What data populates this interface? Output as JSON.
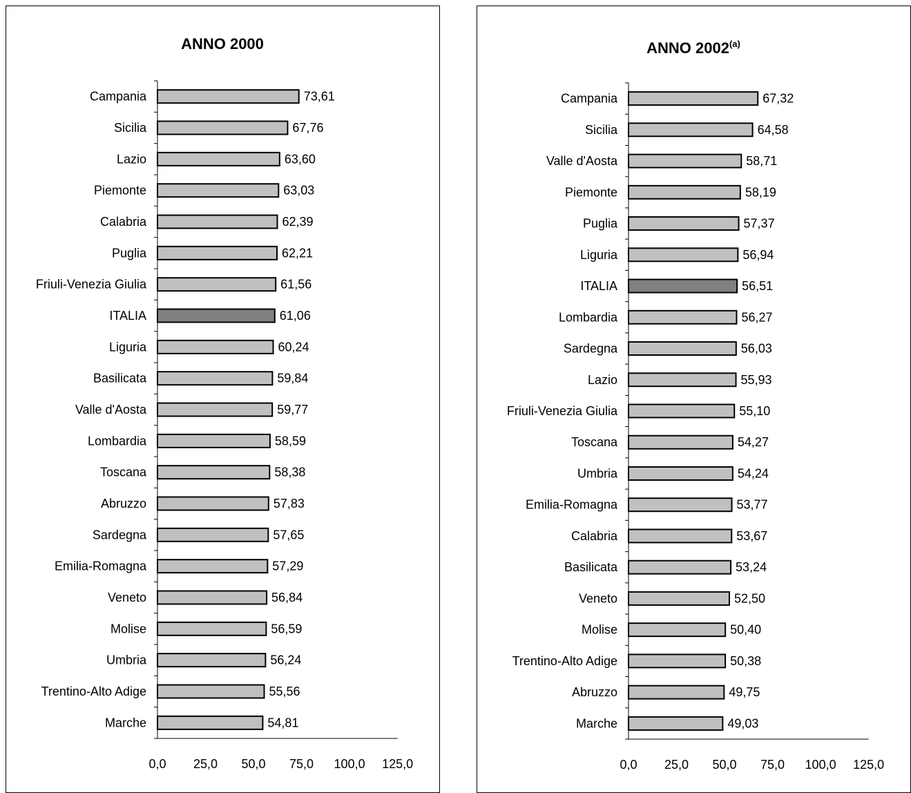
{
  "chart_data": [
    {
      "type": "bar",
      "orientation": "horizontal",
      "title": "ANNO 2000",
      "title_sup": "",
      "categories": [
        "Campania",
        "Sicilia",
        "Lazio",
        "Piemonte",
        "Calabria",
        "Puglia",
        "Friuli-Venezia Giulia",
        "ITALIA",
        "Liguria",
        "Basilicata",
        "Valle d'Aosta",
        "Lombardia",
        "Toscana",
        "Abruzzo",
        "Sardegna",
        "Emilia-Romagna",
        "Veneto",
        "Molise",
        "Umbria",
        "Trentino-Alto Adige",
        "Marche"
      ],
      "values": [
        73.61,
        67.76,
        63.6,
        63.03,
        62.39,
        62.21,
        61.56,
        61.06,
        60.24,
        59.84,
        59.77,
        58.59,
        58.38,
        57.83,
        57.65,
        57.29,
        56.84,
        56.59,
        56.24,
        55.56,
        54.81
      ],
      "value_labels": [
        "73,61",
        "67,76",
        "63,60",
        "63,03",
        "62,39",
        "62,21",
        "61,56",
        "61,06",
        "60,24",
        "59,84",
        "59,77",
        "58,59",
        "58,38",
        "57,83",
        "57,65",
        "57,29",
        "56,84",
        "56,59",
        "56,24",
        "55,56",
        "54,81"
      ],
      "highlight": "ITALIA",
      "xlim": [
        0,
        125
      ],
      "xticks": [
        "0,0",
        "25,0",
        "50,0",
        "75,0",
        "100,0",
        "125,0"
      ],
      "colors": {
        "bar": "#c0c0c0",
        "highlight": "#808080",
        "stroke": "#000000"
      }
    },
    {
      "type": "bar",
      "orientation": "horizontal",
      "title": "ANNO 2002",
      "title_sup": "(a)",
      "categories": [
        "Campania",
        "Sicilia",
        "Valle d'Aosta",
        "Piemonte",
        "Puglia",
        "Liguria",
        "ITALIA",
        "Lombardia",
        "Sardegna",
        "Lazio",
        "Friuli-Venezia Giulia",
        "Toscana",
        "Umbria",
        "Emilia-Romagna",
        "Calabria",
        "Basilicata",
        "Veneto",
        "Molise",
        "Trentino-Alto Adige",
        "Abruzzo",
        "Marche"
      ],
      "values": [
        67.32,
        64.58,
        58.71,
        58.19,
        57.37,
        56.94,
        56.51,
        56.27,
        56.03,
        55.93,
        55.1,
        54.27,
        54.24,
        53.77,
        53.67,
        53.24,
        52.5,
        50.4,
        50.38,
        49.75,
        49.03
      ],
      "value_labels": [
        "67,32",
        "64,58",
        "58,71",
        "58,19",
        "57,37",
        "56,94",
        "56,51",
        "56,27",
        "56,03",
        "55,93",
        "55,10",
        "54,27",
        "54,24",
        "53,77",
        "53,67",
        "53,24",
        "52,50",
        "50,40",
        "50,38",
        "49,75",
        "49,03"
      ],
      "highlight": "ITALIA",
      "xlim": [
        0,
        125
      ],
      "xticks": [
        "0,0",
        "25,0",
        "50,0",
        "75,0",
        "100,0",
        "125,0"
      ],
      "colors": {
        "bar": "#c0c0c0",
        "highlight": "#808080",
        "stroke": "#000000"
      }
    }
  ]
}
